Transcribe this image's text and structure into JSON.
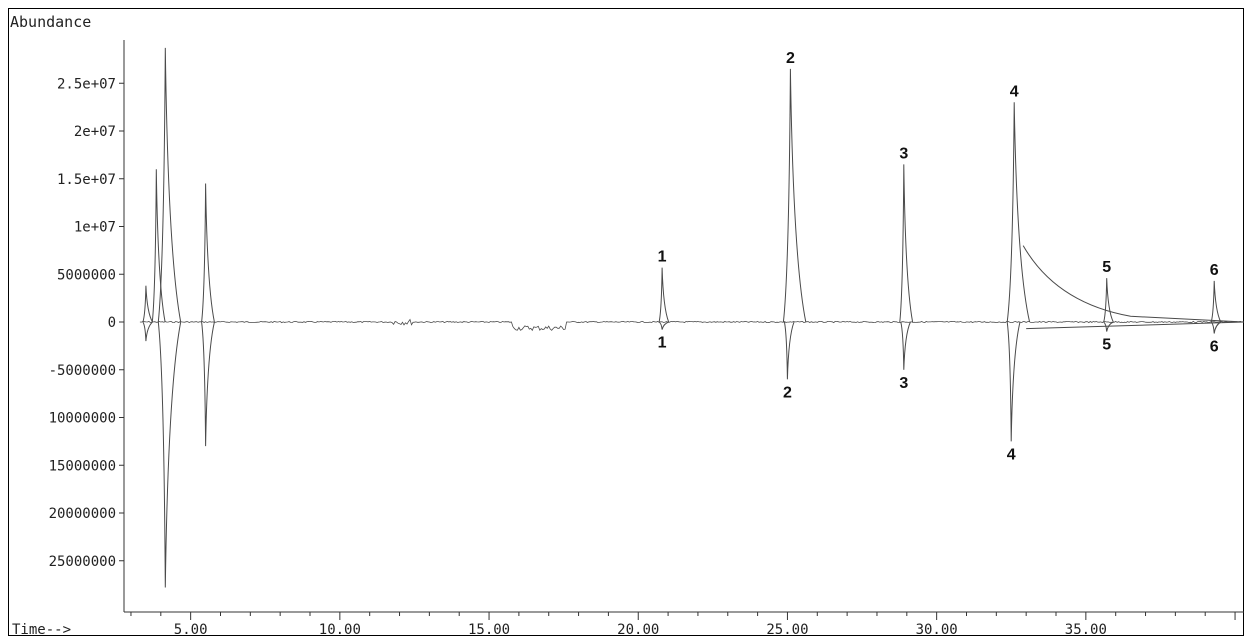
{
  "chart_data": {
    "type": "line",
    "ylabel": "Abundance",
    "xlabel": "Time-->",
    "x_ticks": [
      "5.00",
      "10.00",
      "15.00",
      "20.00",
      "25.00",
      "30.00",
      "35.00"
    ],
    "y_ticks": [
      "2.5e+07",
      "2e+07",
      "1.5e+07",
      "1e+07",
      "5000000",
      "0",
      "-5000000",
      "10000000",
      "15000000",
      "20000000",
      "25000000"
    ],
    "y_tick_values": [
      25000000,
      20000000,
      15000000,
      10000000,
      5000000,
      0,
      -5000000,
      -10000000,
      -15000000,
      -20000000,
      -25000000
    ],
    "xlim": [
      2.8,
      40.3
    ],
    "ylim": [
      -30000000,
      30000000
    ],
    "series": [
      {
        "direction": "up",
        "peaks": [
          {
            "x": 3.5,
            "y": 3800000,
            "label": ""
          },
          {
            "x": 3.85,
            "y": 16000000,
            "label": ""
          },
          {
            "x": 4.15,
            "y": 28700000,
            "label": ""
          },
          {
            "x": 5.5,
            "y": 14500000,
            "label": ""
          },
          {
            "x": 20.8,
            "y": 5700000,
            "label": "1"
          },
          {
            "x": 25.1,
            "y": 26500000,
            "label": "2"
          },
          {
            "x": 28.9,
            "y": 16500000,
            "label": "3"
          },
          {
            "x": 32.6,
            "y": 23000000,
            "label": "4"
          },
          {
            "x": 35.7,
            "y": 4600000,
            "label": "5"
          },
          {
            "x": 39.3,
            "y": 4300000,
            "label": "6"
          }
        ]
      },
      {
        "direction": "down",
        "peaks": [
          {
            "x": 3.5,
            "y": -2000000,
            "label": ""
          },
          {
            "x": 4.15,
            "y": -27800000,
            "label": ""
          },
          {
            "x": 5.5,
            "y": -13000000,
            "label": ""
          },
          {
            "x": 20.8,
            "y": -800000,
            "label": "1"
          },
          {
            "x": 25.0,
            "y": -6000000,
            "label": "2"
          },
          {
            "x": 28.9,
            "y": -5000000,
            "label": "3"
          },
          {
            "x": 32.5,
            "y": -12500000,
            "label": "4"
          },
          {
            "x": 35.7,
            "y": -1000000,
            "label": "5"
          },
          {
            "x": 39.3,
            "y": -1200000,
            "label": "6"
          }
        ]
      }
    ],
    "grid": false,
    "line_color": "#4a4a4a",
    "text_color": "#222222"
  }
}
